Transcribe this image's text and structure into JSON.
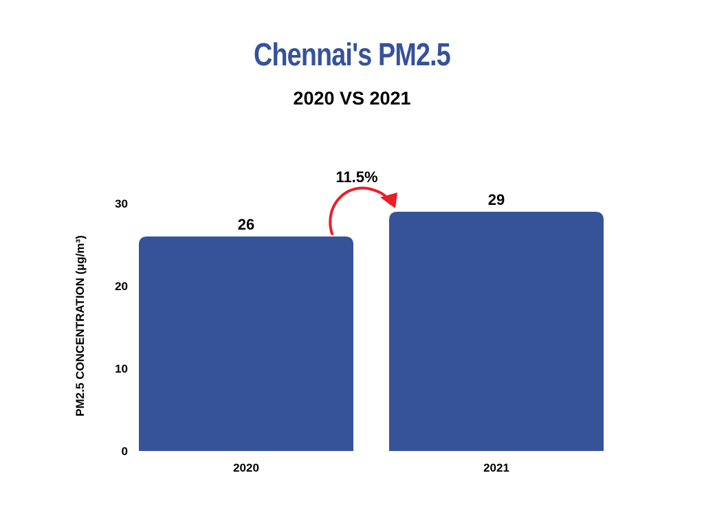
{
  "chart_data": {
    "type": "bar",
    "title": "Chennai's PM2.5",
    "subtitle": "2020 VS 2021",
    "categories": [
      "2020",
      "2021"
    ],
    "values": [
      26,
      29
    ],
    "data_labels": [
      "26",
      "29"
    ],
    "xlabel": "",
    "ylabel": "PM2.5 CONCENTRATION (µg/m³)",
    "ylim": [
      0,
      30
    ],
    "yticks": [
      "0",
      "10",
      "20",
      "30"
    ],
    "grid": false,
    "annotation": {
      "text": "11.5%",
      "from": "2020",
      "to": "2021"
    },
    "colors": {
      "bar": "#36539a",
      "title": "#35529a",
      "arrow": "#ee1c25",
      "text": "#000000"
    }
  }
}
